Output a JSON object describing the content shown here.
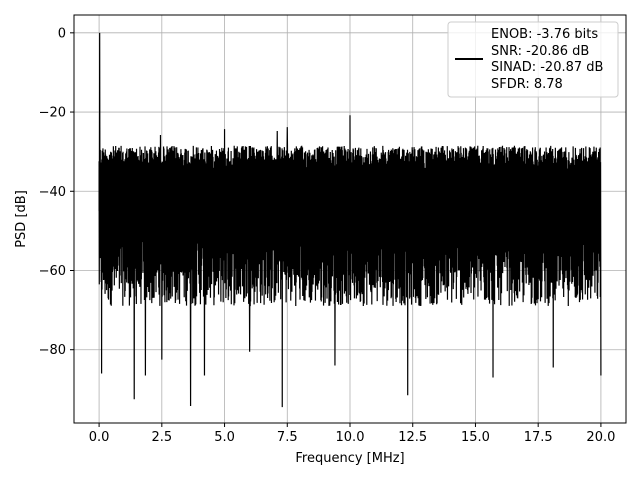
{
  "chart_data": {
    "type": "line",
    "title": "",
    "xlabel": "Frequency [MHz]",
    "ylabel": "PSD [dB]",
    "xlim": [
      -1.0,
      21.0
    ],
    "ylim": [
      -98.5,
      4.5
    ],
    "xticks": [
      0.0,
      2.5,
      5.0,
      7.5,
      10.0,
      12.5,
      15.0,
      17.5,
      20.0
    ],
    "xtick_labels": [
      "0.0",
      "2.5",
      "5.0",
      "7.5",
      "10.0",
      "12.5",
      "15.0",
      "17.5",
      "20.0"
    ],
    "yticks": [
      0,
      -20,
      -40,
      -60,
      -80
    ],
    "ytick_labels": [
      "0",
      "−20",
      "−40",
      "−60",
      "−80"
    ],
    "grid": true,
    "legend_position": "top-right",
    "legend_entries": [
      "ENOB: -3.76 bits",
      "SNR: -20.86 dB",
      "SINAD: -20.87 dB",
      "SFDR: 8.78"
    ],
    "series": [
      {
        "color": "#000000",
        "noise_floor": {
          "x_range": [
            0.0,
            20.0
          ],
          "upper_envelope_db": -28.5,
          "lower_envelope_db": -69.0
        },
        "peaks": [
          {
            "x": 0.02,
            "y": 0.0
          },
          {
            "x": 10.0,
            "y": -20.8
          },
          {
            "x": 5.0,
            "y": -24.3
          },
          {
            "x": 7.5,
            "y": -23.8
          },
          {
            "x": 7.1,
            "y": -24.8
          },
          {
            "x": 2.45,
            "y": -25.8
          }
        ],
        "dips": [
          {
            "x": 0.1,
            "y": -86.0
          },
          {
            "x": 1.4,
            "y": -92.5
          },
          {
            "x": 3.65,
            "y": -94.2
          },
          {
            "x": 7.3,
            "y": -94.5
          },
          {
            "x": 4.2,
            "y": -86.5
          },
          {
            "x": 1.85,
            "y": -86.5
          },
          {
            "x": 12.3,
            "y": -91.5
          },
          {
            "x": 15.7,
            "y": -87.0
          },
          {
            "x": 18.1,
            "y": -84.5
          },
          {
            "x": 20.0,
            "y": -86.5
          },
          {
            "x": 9.4,
            "y": -84.0
          },
          {
            "x": 2.5,
            "y": -82.5
          },
          {
            "x": 6.0,
            "y": -80.5
          }
        ]
      }
    ]
  }
}
